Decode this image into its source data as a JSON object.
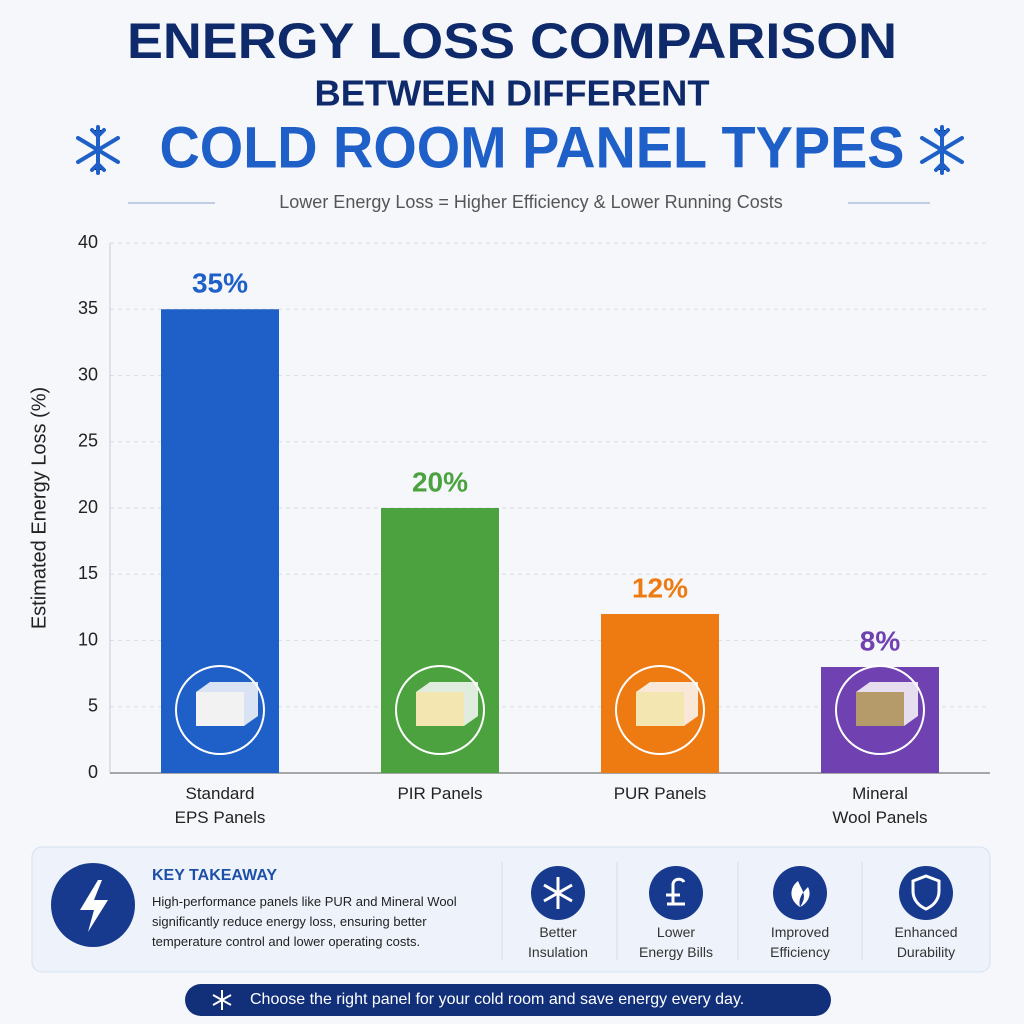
{
  "chart_data": {
    "type": "bar",
    "title_lines": [
      "ENERGY LOSS COMPARISON",
      "BETWEEN DIFFERENT",
      "COLD ROOM PANEL TYPES"
    ],
    "subtitle": "Lower Energy Loss = Higher Efficiency & Lower Running Costs",
    "y_label": "Estimated Energy Loss (%)",
    "categories": [
      "Standard EPS Panels",
      "PIR Panels",
      "PUR Panels",
      "Mineral Wool Panels"
    ],
    "values": [
      35,
      20,
      12,
      8
    ],
    "value_labels": [
      "35%",
      "20%",
      "12%",
      "8%"
    ],
    "colors": [
      "#1f5fc8",
      "#4ba23f",
      "#ee7a12",
      "#7041b0"
    ],
    "ylim": [
      0,
      40
    ],
    "yticks": [
      0,
      5,
      10,
      15,
      20,
      25,
      30,
      35,
      40
    ],
    "grid": true
  },
  "takeaway": {
    "title": "KEY TAKEAWAY",
    "text": "High-performance panels like PUR and Mineral Wool significantly reduce energy loss, ensuring better temperature control and lower operating costs."
  },
  "features": [
    "Better Insulation",
    "Lower Energy Bills",
    "Improved Efficiency",
    "Enhanced Durability"
  ],
  "footer": "Choose the right panel for your cold room and save energy every day."
}
